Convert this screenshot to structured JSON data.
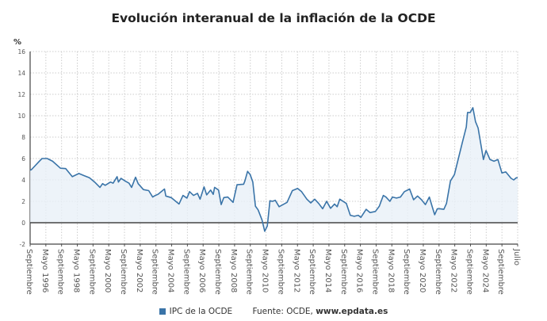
{
  "chart_data": {
    "type": "area",
    "title": "Evolución interanual de la inflación de la OCDE",
    "ylabel": "%",
    "xlabel": "",
    "ylim": [
      -2,
      16
    ],
    "yticks": [
      -2,
      0,
      2,
      4,
      6,
      8,
      10,
      12,
      14,
      16
    ],
    "grid": true,
    "legend_position": "bottom",
    "xlim": [
      "1994-09",
      "2025-07"
    ],
    "xtick_labels": [
      "Septiembre",
      "Mayo 1996",
      "Septiembre",
      "Mayo 1998",
      "Septiembre",
      "Mayo 2000",
      "Septiembre",
      "Mayo 2002",
      "Septiembre",
      "Mayo 2004",
      "Septiembre",
      "Mayo 2006",
      "Septiembre",
      "Mayo 2008",
      "Septiembre",
      "Mayo 2010",
      "Septiembre",
      "Mayo 2012",
      "Septiembre",
      "Mayo 2014",
      "Septiembre",
      "Mayo 2016",
      "Septiembre",
      "Mayo 2018",
      "Septiembre",
      "Mayo 2020",
      "Septiembre",
      "Mayo 2022",
      "Septiembre",
      "Mayo 2024",
      "Septiembre",
      "Julio"
    ],
    "series": [
      {
        "name": "IPC de la OCDE",
        "color": "#3a74a8",
        "points": [
          [
            "1994-09",
            4.9
          ],
          [
            "1994-10",
            4.96
          ],
          [
            "1995-04",
            5.75
          ],
          [
            "1995-06",
            6.0
          ],
          [
            "1995-10",
            6.0
          ],
          [
            "1996-02",
            5.75
          ],
          [
            "1996-08",
            5.1
          ],
          [
            "1996-12",
            5.06
          ],
          [
            "1997-05",
            4.3
          ],
          [
            "1997-10",
            4.6
          ],
          [
            "1998-02",
            4.4
          ],
          [
            "1998-06",
            4.2
          ],
          [
            "1998-10",
            3.8
          ],
          [
            "1999-02",
            3.3
          ],
          [
            "1999-04",
            3.65
          ],
          [
            "1999-06",
            3.5
          ],
          [
            "1999-10",
            3.8
          ],
          [
            "1999-12",
            3.7
          ],
          [
            "2000-03",
            4.3
          ],
          [
            "2000-04",
            3.8
          ],
          [
            "2000-06",
            4.15
          ],
          [
            "2000-09",
            3.9
          ],
          [
            "2000-12",
            3.7
          ],
          [
            "2001-02",
            3.3
          ],
          [
            "2001-05",
            4.25
          ],
          [
            "2001-07",
            3.65
          ],
          [
            "2001-11",
            3.1
          ],
          [
            "2002-03",
            3.0
          ],
          [
            "2002-06",
            2.4
          ],
          [
            "2002-08",
            2.55
          ],
          [
            "2002-10",
            2.65
          ],
          [
            "2003-02",
            3.05
          ],
          [
            "2003-03",
            3.15
          ],
          [
            "2003-04",
            2.5
          ],
          [
            "2003-08",
            2.35
          ],
          [
            "2003-11",
            2.05
          ],
          [
            "2004-02",
            1.75
          ],
          [
            "2004-05",
            2.55
          ],
          [
            "2004-08",
            2.3
          ],
          [
            "2004-10",
            2.9
          ],
          [
            "2005-01",
            2.55
          ],
          [
            "2005-04",
            2.75
          ],
          [
            "2005-06",
            2.2
          ],
          [
            "2005-09",
            3.35
          ],
          [
            "2005-11",
            2.6
          ],
          [
            "2006-02",
            3.05
          ],
          [
            "2006-04",
            2.65
          ],
          [
            "2006-05",
            3.3
          ],
          [
            "2006-08",
            3.05
          ],
          [
            "2006-10",
            1.7
          ],
          [
            "2006-12",
            2.35
          ],
          [
            "2007-03",
            2.4
          ],
          [
            "2007-07",
            1.9
          ],
          [
            "2007-10",
            3.55
          ],
          [
            "2008-03",
            3.6
          ],
          [
            "2008-04",
            3.9
          ],
          [
            "2008-06",
            4.8
          ],
          [
            "2008-08",
            4.5
          ],
          [
            "2008-10",
            3.8
          ],
          [
            "2008-12",
            1.55
          ],
          [
            "2009-02",
            1.2
          ],
          [
            "2009-05",
            0.27
          ],
          [
            "2009-07",
            -0.8
          ],
          [
            "2009-09",
            -0.3
          ],
          [
            "2009-11",
            2.05
          ],
          [
            "2010-01",
            2.0
          ],
          [
            "2010-03",
            2.1
          ],
          [
            "2010-06",
            1.5
          ],
          [
            "2010-09",
            1.7
          ],
          [
            "2010-12",
            1.9
          ],
          [
            "2011-04",
            3.0
          ],
          [
            "2011-08",
            3.2
          ],
          [
            "2011-11",
            2.9
          ],
          [
            "2012-03",
            2.2
          ],
          [
            "2012-06",
            1.85
          ],
          [
            "2012-09",
            2.2
          ],
          [
            "2012-12",
            1.8
          ],
          [
            "2013-03",
            1.3
          ],
          [
            "2013-06",
            2.0
          ],
          [
            "2013-09",
            1.35
          ],
          [
            "2013-12",
            1.75
          ],
          [
            "2014-02",
            1.5
          ],
          [
            "2014-04",
            2.2
          ],
          [
            "2014-09",
            1.8
          ],
          [
            "2014-12",
            0.7
          ],
          [
            "2015-03",
            0.6
          ],
          [
            "2015-06",
            0.7
          ],
          [
            "2015-08",
            0.5
          ],
          [
            "2015-12",
            1.25
          ],
          [
            "2016-03",
            0.95
          ],
          [
            "2016-07",
            1.05
          ],
          [
            "2016-10",
            1.55
          ],
          [
            "2017-01",
            2.55
          ],
          [
            "2017-03",
            2.4
          ],
          [
            "2017-06",
            2.0
          ],
          [
            "2017-08",
            2.4
          ],
          [
            "2017-11",
            2.3
          ],
          [
            "2018-02",
            2.4
          ],
          [
            "2018-05",
            2.9
          ],
          [
            "2018-09",
            3.15
          ],
          [
            "2018-12",
            2.15
          ],
          [
            "2019-03",
            2.5
          ],
          [
            "2019-06",
            2.15
          ],
          [
            "2019-09",
            1.7
          ],
          [
            "2019-12",
            2.4
          ],
          [
            "2020-02",
            1.55
          ],
          [
            "2020-04",
            0.75
          ],
          [
            "2020-06",
            1.3
          ],
          [
            "2020-08",
            1.3
          ],
          [
            "2020-11",
            1.25
          ],
          [
            "2021-01",
            1.8
          ],
          [
            "2021-04",
            3.9
          ],
          [
            "2021-07",
            4.5
          ],
          [
            "2021-10",
            6.0
          ],
          [
            "2022-01",
            7.5
          ],
          [
            "2022-04",
            8.95
          ],
          [
            "2022-05",
            10.3
          ],
          [
            "2022-07",
            10.3
          ],
          [
            "2022-09",
            10.75
          ],
          [
            "2022-11",
            9.45
          ],
          [
            "2023-01",
            8.85
          ],
          [
            "2023-05",
            5.9
          ],
          [
            "2023-07",
            6.75
          ],
          [
            "2023-10",
            5.9
          ],
          [
            "2024-01",
            5.75
          ],
          [
            "2024-04",
            5.9
          ],
          [
            "2024-07",
            4.65
          ],
          [
            "2024-10",
            4.75
          ],
          [
            "2025-02",
            4.15
          ],
          [
            "2025-04",
            4.0
          ],
          [
            "2025-06",
            4.2
          ],
          [
            "2025-07",
            4.2
          ]
        ]
      }
    ]
  },
  "legend": {
    "series_label": "IPC de la OCDE",
    "source_prefix": "Fuente: OCDE,",
    "source_site": "www.epdata.es"
  }
}
